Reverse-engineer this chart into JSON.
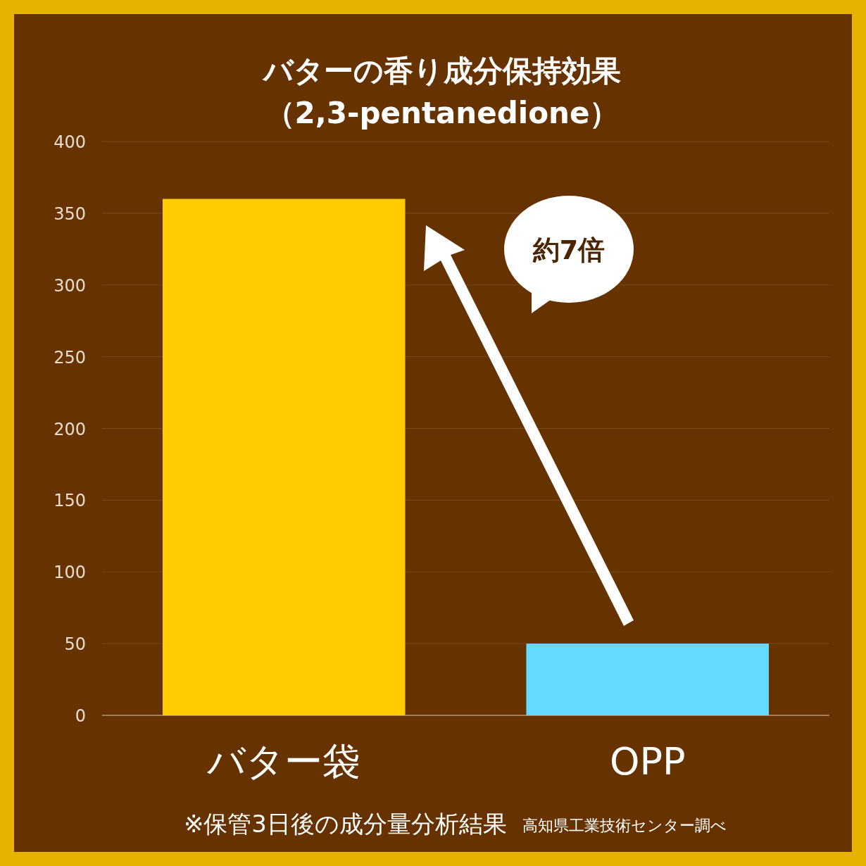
{
  "chart_data": {
    "type": "bar",
    "title": "バターの香り成分保持効果",
    "subtitle": "（2,3-pentanedione）",
    "categories": [
      "バター袋",
      "OPP"
    ],
    "values": [
      360,
      50
    ],
    "colors": [
      "#ffcc00",
      "#66d9ff"
    ],
    "ylim": [
      0,
      400
    ],
    "yticks": [
      0,
      50,
      100,
      150,
      200,
      250,
      300,
      350,
      400
    ],
    "grid": "y",
    "annotations": [
      "約7倍",
      "※保管3日後の成分量分析結果",
      "高知県工業技術センター調べ"
    ]
  }
}
